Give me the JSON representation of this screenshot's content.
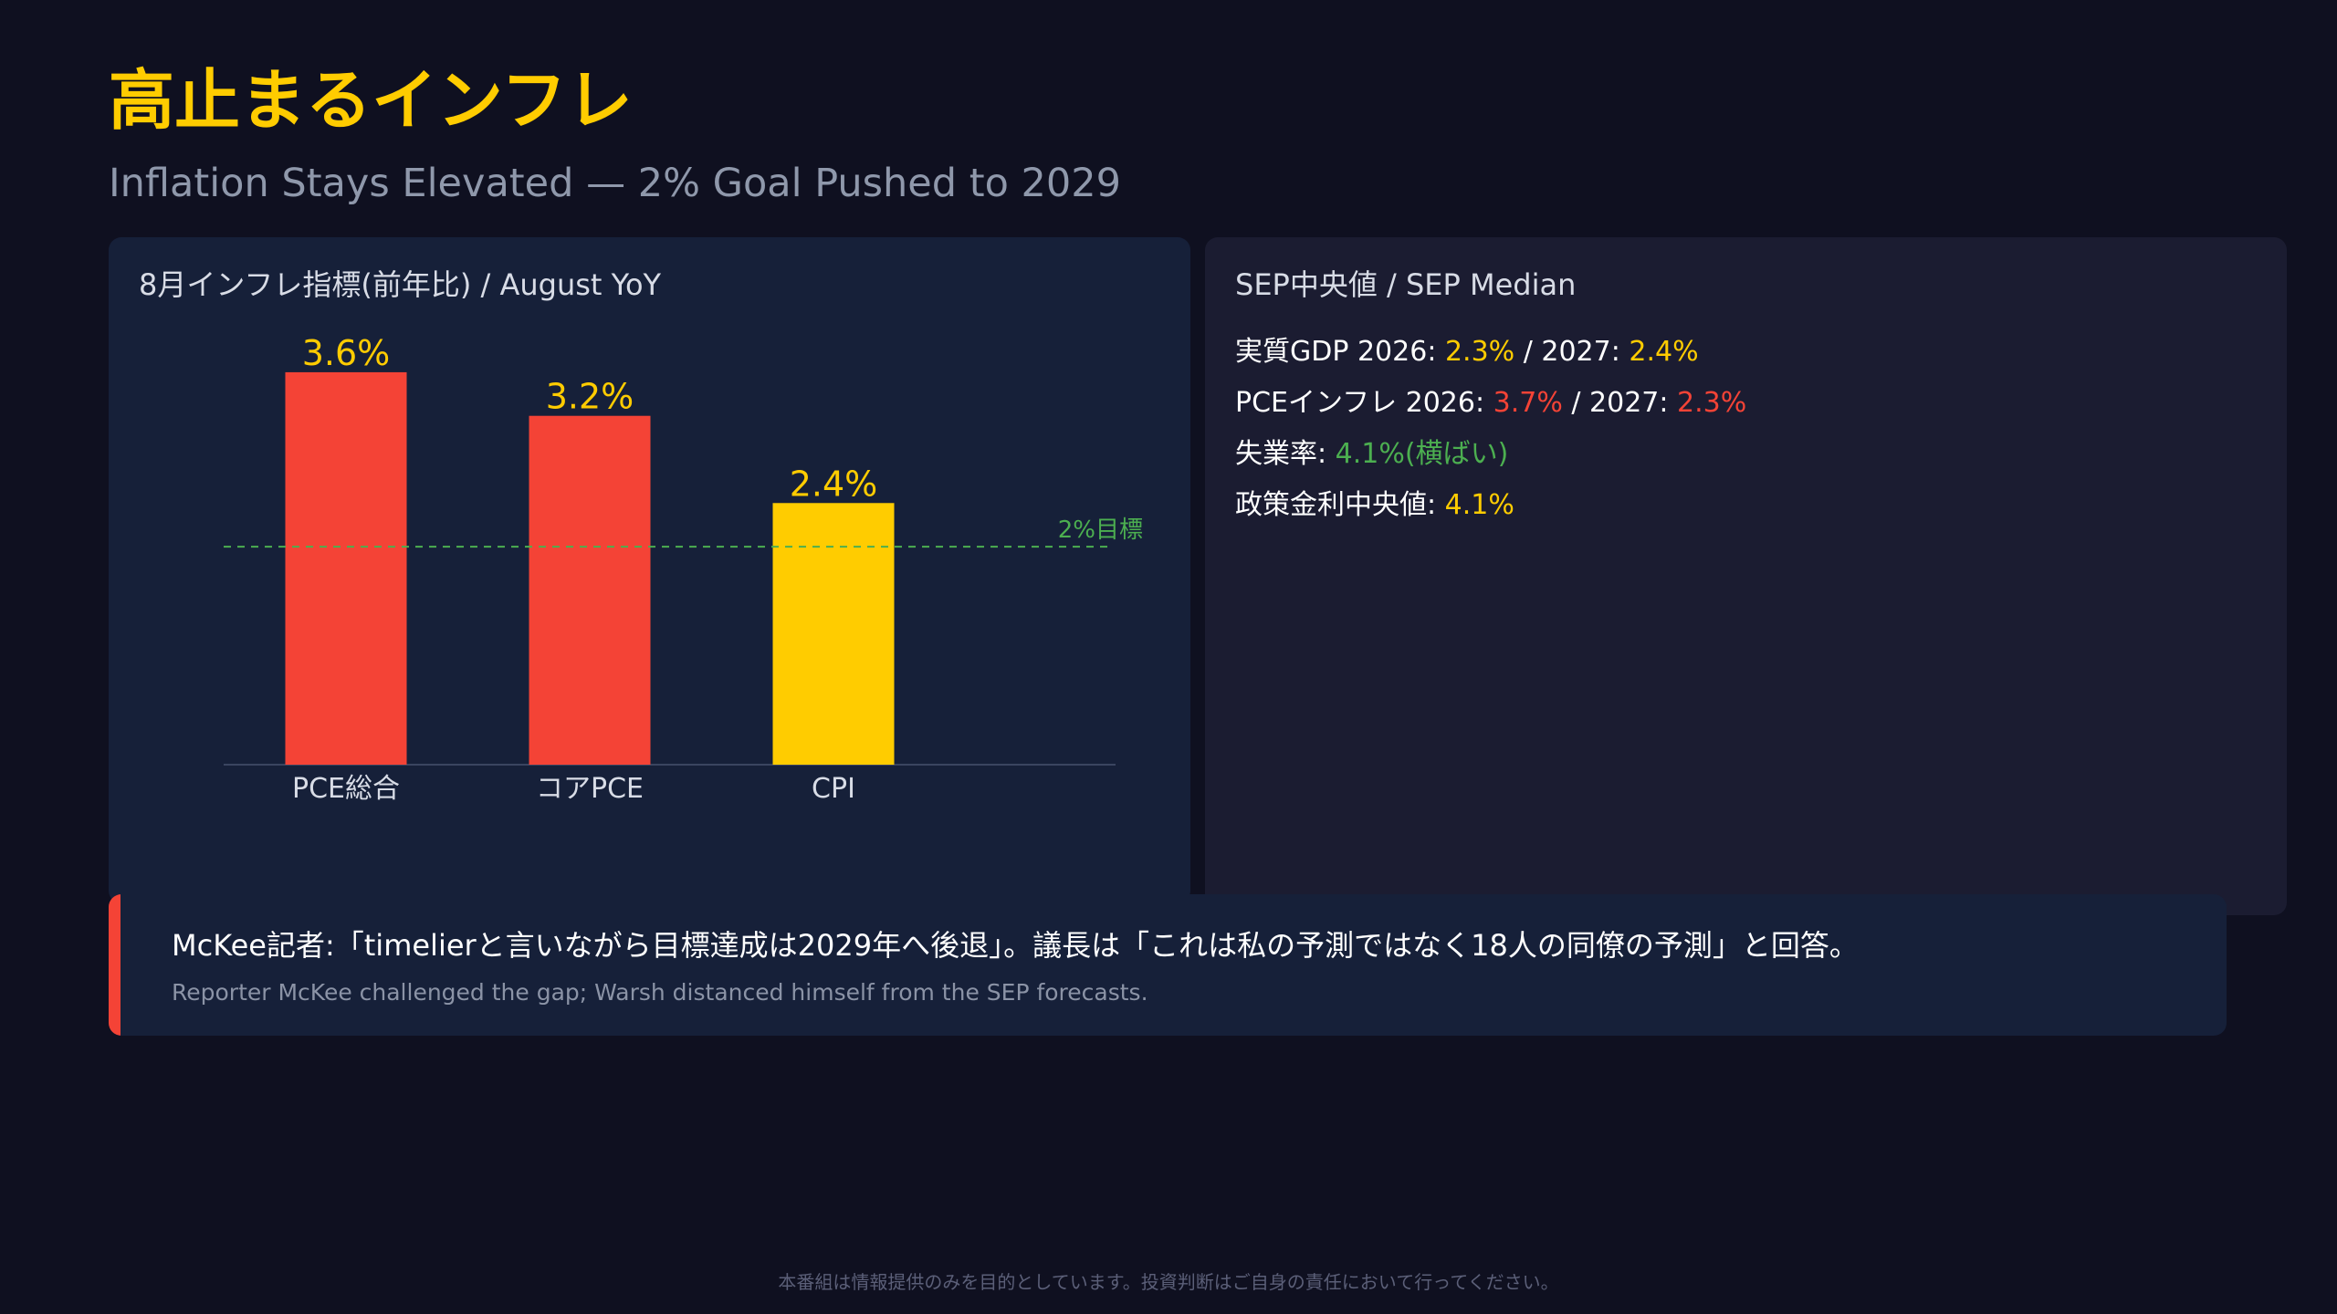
{
  "header": {
    "title": "高止まるインフレ",
    "subtitle": "Inflation Stays Elevated — 2% Goal Pushed to 2029"
  },
  "chart_panel": {
    "title": "8月インフレ指標(前年比) / August YoY"
  },
  "chart_data": {
    "type": "bar",
    "title": "8月インフレ指標(前年比) / August YoY",
    "categories": [
      "PCE総合",
      "コアPCE",
      "CPI"
    ],
    "values": [
      3.6,
      3.2,
      2.4
    ],
    "value_labels": [
      "3.6%",
      "3.2%",
      "2.4%"
    ],
    "bar_colors": [
      "#f44336",
      "#f44336",
      "#ffcc00"
    ],
    "ylim": [
      0,
      3.75
    ],
    "grid": false,
    "reference_line": {
      "value": 2.0,
      "label": "2%目標",
      "color": "#4caf50"
    }
  },
  "sep_panel": {
    "title": "SEP中央値 / SEP Median",
    "rows": [
      {
        "label": "実質GDP 2026: ",
        "v1": "2.3%",
        "mid": " / 2027: ",
        "v2": "2.4%"
      },
      {
        "label": "PCEインフレ 2026: ",
        "v1": "3.7%",
        "mid": " / 2027: ",
        "v2": "2.3%"
      },
      {
        "label": "失業率: ",
        "v1": "4.1%(横ばい)"
      },
      {
        "label": "政策金利中央値: ",
        "v1": "4.1%"
      }
    ]
  },
  "quote": {
    "main": "McKee記者:「timelierと言いながら目標達成は2029年へ後退」。議長は「これは私の予測ではなく18人の同僚の予測」と回答。",
    "sub": "Reporter McKee challenged the gap; Warsh distanced himself from the SEP forecasts."
  },
  "footer": {
    "disclaimer": "本番組は情報提供のみを目的としています。投資判断はご自身の責任において行ってください。"
  },
  "colors": {
    "background": "#0f1020",
    "accent_yellow": "#ffcc00",
    "accent_red": "#f44336",
    "accent_green": "#4caf50"
  }
}
